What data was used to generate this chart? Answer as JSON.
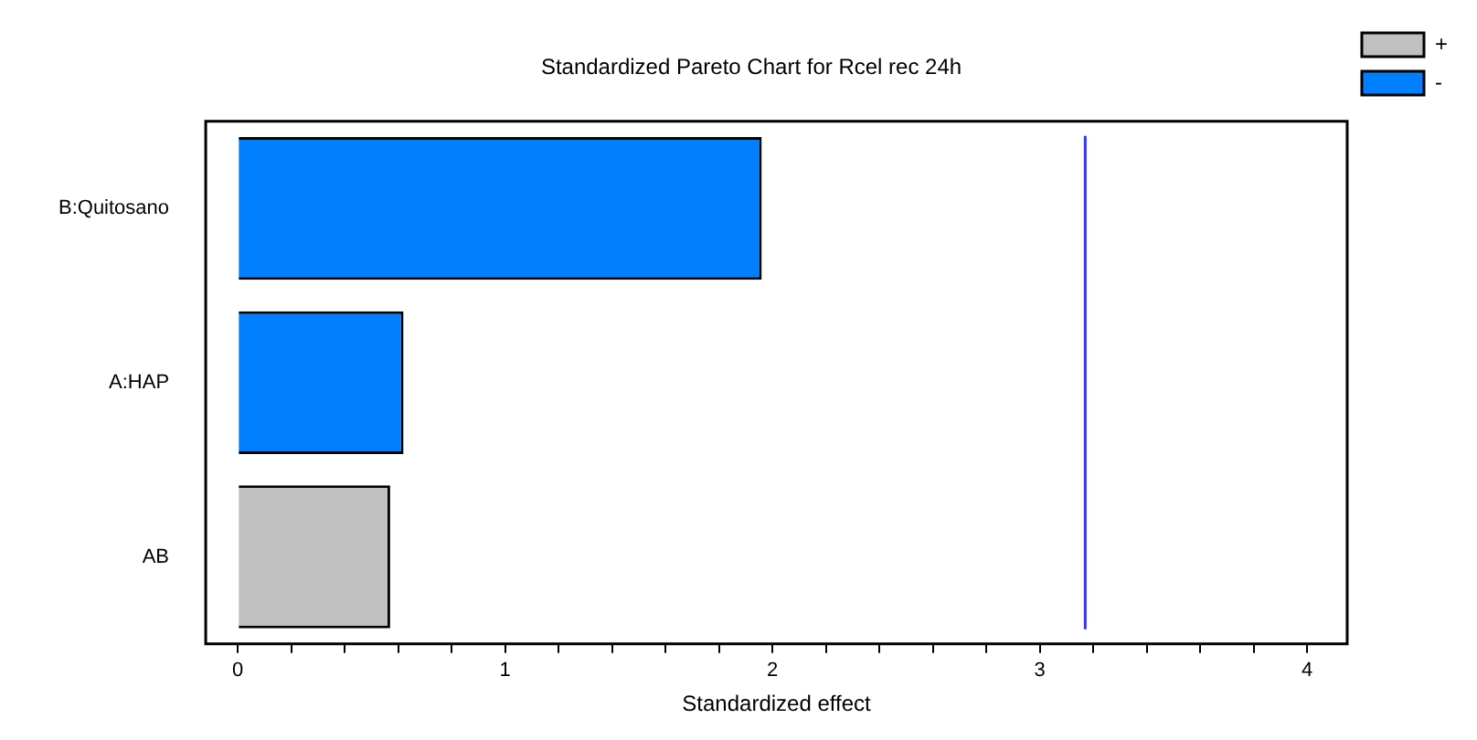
{
  "chart_data": {
    "type": "bar",
    "orientation": "horizontal",
    "title": "Standardized Pareto Chart for Rcel rec 24h",
    "xlabel": "Standardized effect",
    "categories": [
      "B:Quitosano",
      "A:HAP",
      "AB"
    ],
    "series": [
      {
        "name": "+",
        "color": "#c0c0c0",
        "values": [
          null,
          null,
          0.57
        ]
      },
      {
        "name": "-",
        "color": "#0080ff",
        "values": [
          1.96,
          0.62,
          null
        ]
      }
    ],
    "xlim": [
      -0.12,
      4.15
    ],
    "xticks": [
      0,
      {
        "value": 0.2,
        "label": null
      },
      {
        "value": 0.4,
        "label": null
      },
      {
        "value": 0.6,
        "label": null
      },
      {
        "value": 0.8,
        "label": null
      },
      1,
      {
        "value": 1.2,
        "label": null
      },
      {
        "value": 1.4,
        "label": null
      },
      {
        "value": 1.6,
        "label": null
      },
      {
        "value": 1.8,
        "label": null
      },
      2,
      {
        "value": 2.2,
        "label": null
      },
      {
        "value": 2.4,
        "label": null
      },
      {
        "value": 2.6,
        "label": null
      },
      {
        "value": 2.8,
        "label": null
      },
      3,
      {
        "value": 3.2,
        "label": null
      },
      {
        "value": 3.4,
        "label": null
      },
      {
        "value": 3.6,
        "label": null
      },
      {
        "value": 3.8,
        "label": null
      },
      4
    ],
    "ref_lines": [
      {
        "axis": "x",
        "value": 3.17,
        "color": "#3333ff"
      }
    ],
    "grid": false,
    "legend": "top right"
  }
}
